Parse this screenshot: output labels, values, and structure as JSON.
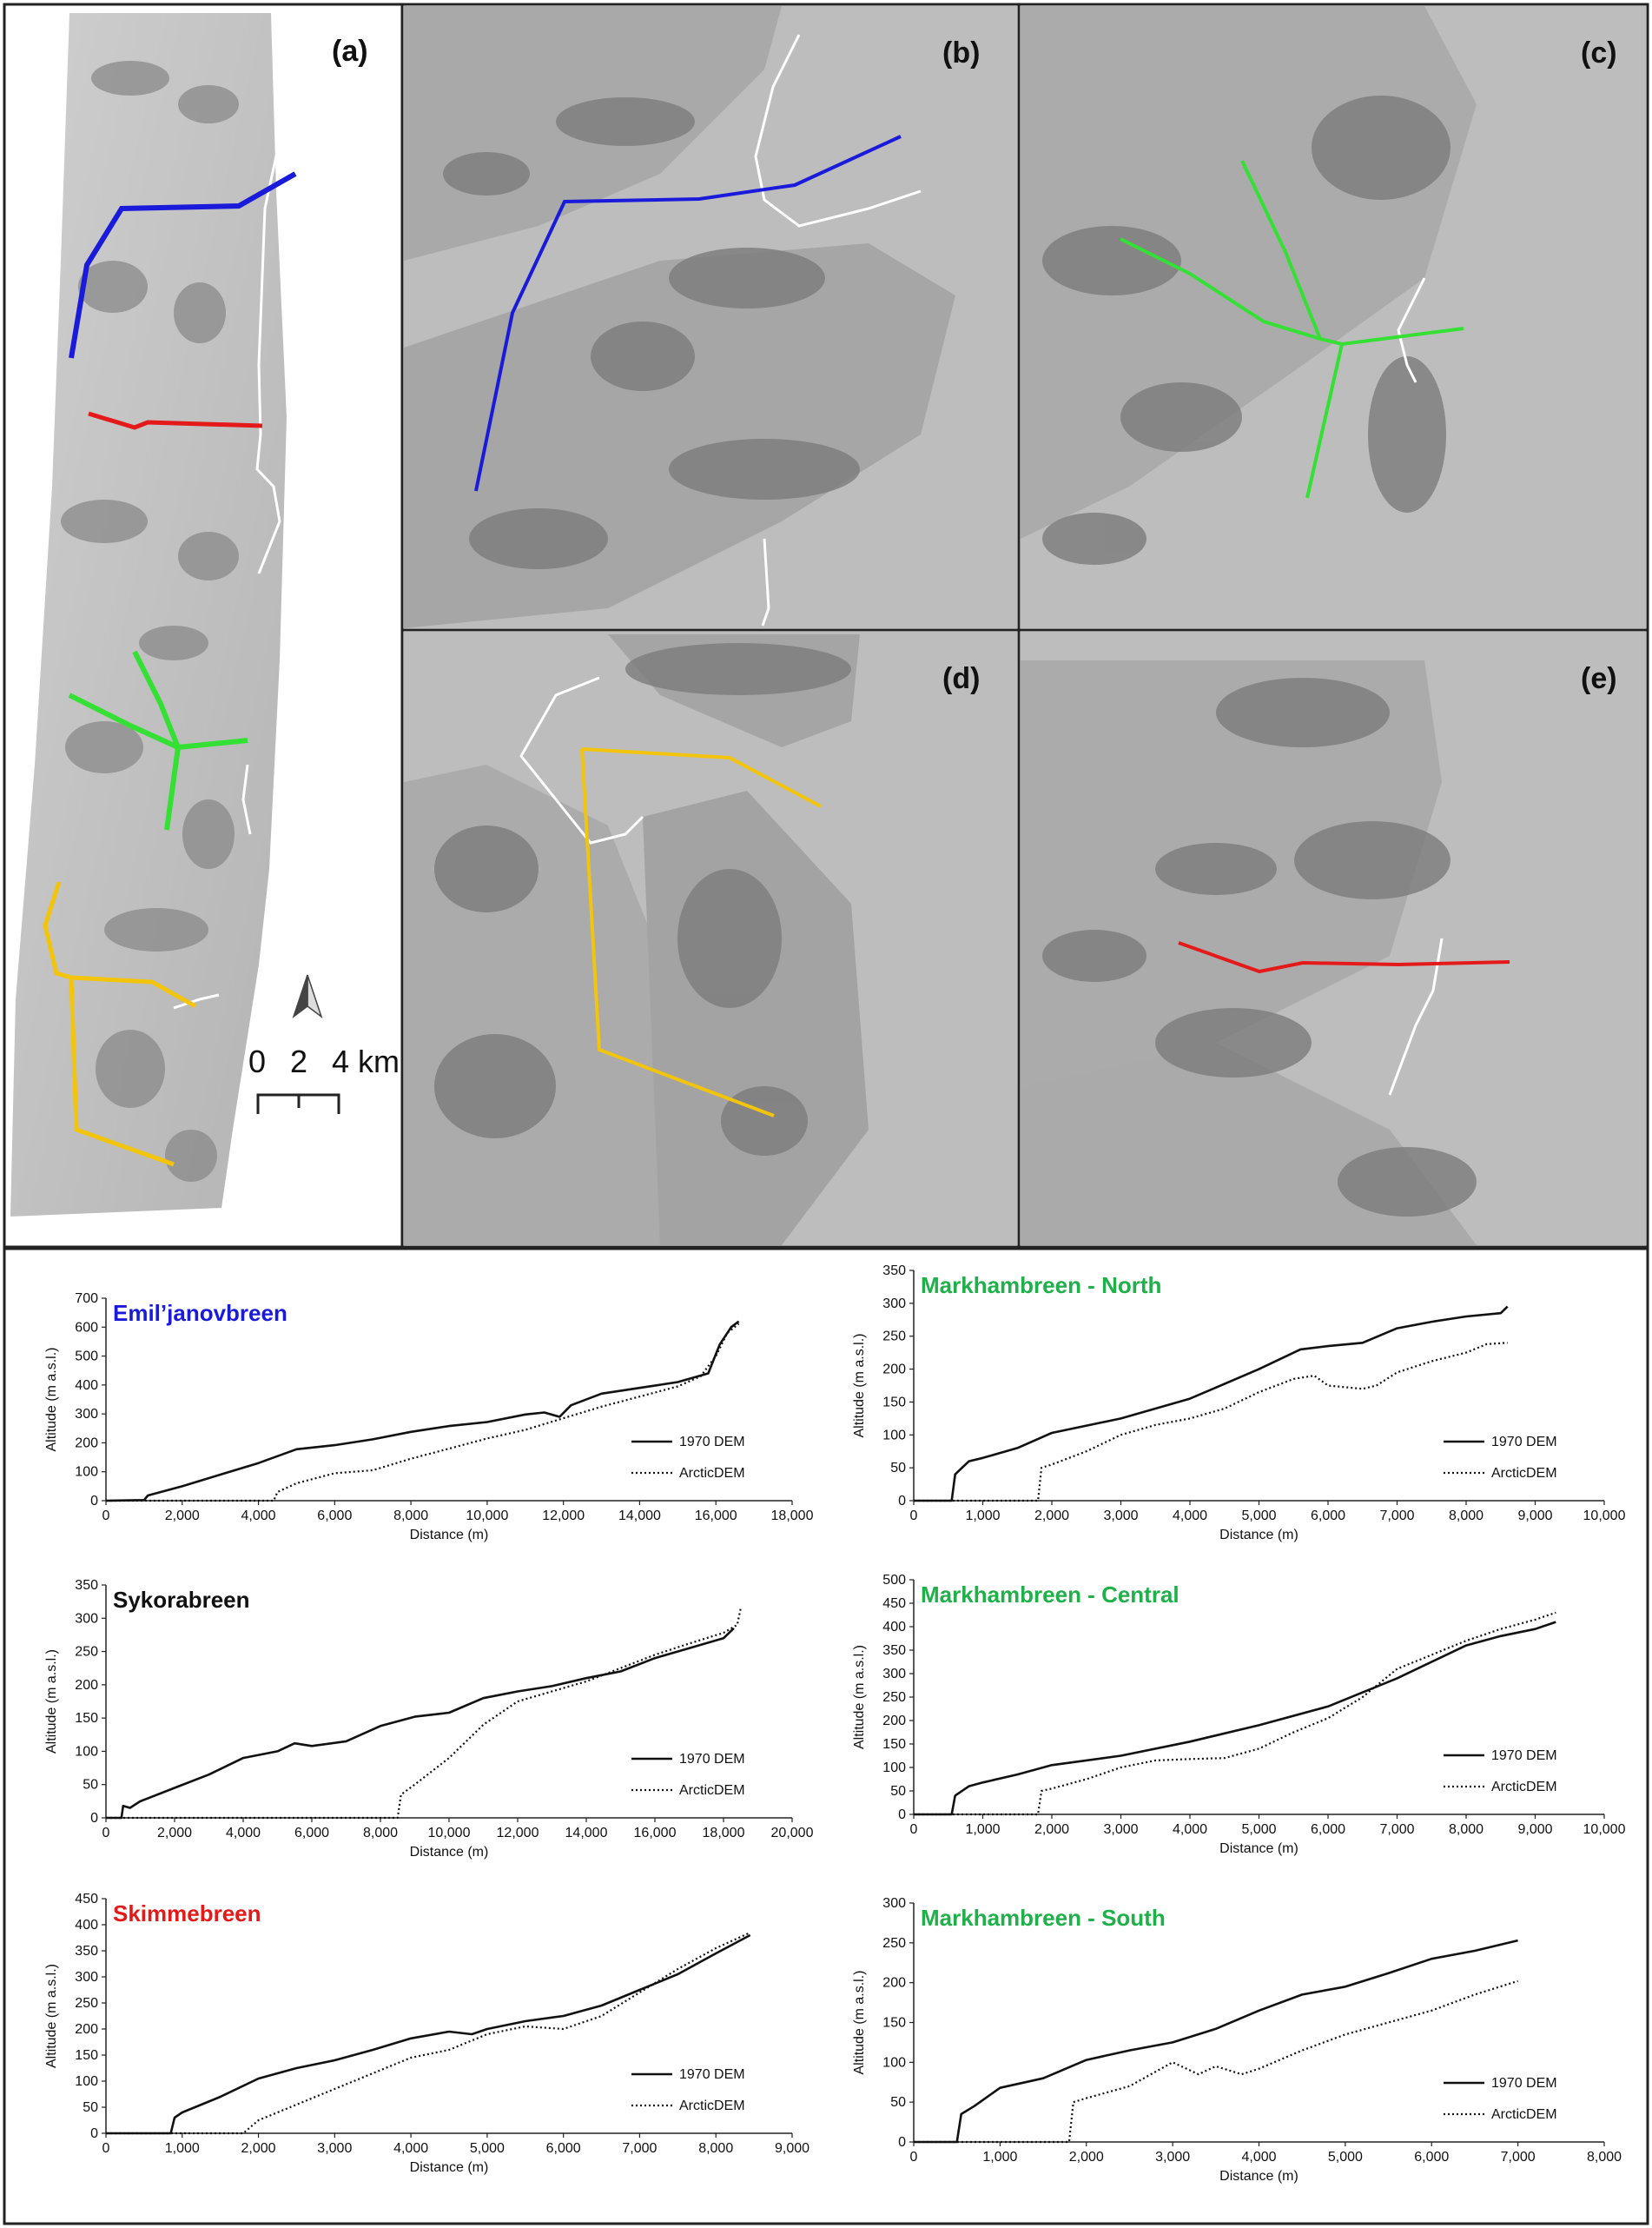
{
  "maps": {
    "labels": [
      "(a)",
      "(b)",
      "(c)",
      "(d)",
      "(e)"
    ],
    "scale_bar": {
      "ticks": [
        "0",
        "2",
        "4 km"
      ]
    },
    "colors": {
      "emil": "#1a1adb",
      "skimme": "#e41a1a",
      "markham": "#34e034",
      "sykora": "#f2c40c",
      "coast": "#ffffff"
    }
  },
  "legend": {
    "series": [
      "1970 DEM",
      "ArcticDEM"
    ]
  },
  "chart_data": [
    {
      "type": "line",
      "title": "Emil’janovbreen",
      "title_color": "#1a1adb",
      "xlabel": "Distance (m)",
      "ylabel": "Altitude (m a.s.l.)",
      "xlim": [
        0,
        18000
      ],
      "ylim": [
        0,
        700
      ],
      "xticks": [
        0,
        2000,
        4000,
        6000,
        8000,
        10000,
        12000,
        14000,
        16000,
        18000
      ],
      "xtick_labels": [
        "0",
        "2,000",
        "4,000",
        "6,000",
        "8,000",
        "10,000",
        "12,000",
        "14,000",
        "16,000",
        "18,000"
      ],
      "yticks": [
        0,
        100,
        200,
        300,
        400,
        500,
        600,
        700
      ],
      "ytick_labels": [
        "0",
        "100",
        "200",
        "300",
        "400",
        "500",
        "600",
        "700"
      ],
      "series": [
        {
          "name": "1970 DEM",
          "style": "solid",
          "x": [
            0,
            1000,
            1100,
            2000,
            3000,
            4000,
            5000,
            6000,
            7000,
            8000,
            9000,
            10000,
            11000,
            11500,
            11900,
            12200,
            13000,
            14000,
            15000,
            15800,
            16100,
            16400,
            16600
          ],
          "y": [
            0,
            2,
            18,
            50,
            90,
            130,
            178,
            192,
            212,
            238,
            258,
            272,
            298,
            305,
            290,
            330,
            370,
            390,
            410,
            440,
            540,
            600,
            620
          ]
        },
        {
          "name": "ArcticDEM",
          "style": "dotted",
          "x": [
            0,
            4400,
            4500,
            5000,
            6000,
            7000,
            8000,
            9000,
            10000,
            11000,
            12000,
            13000,
            14000,
            15000,
            15600,
            16000,
            16300,
            16600
          ],
          "y": [
            0,
            0,
            30,
            60,
            95,
            105,
            145,
            180,
            215,
            245,
            285,
            325,
            360,
            395,
            430,
            500,
            580,
            612
          ]
        }
      ]
    },
    {
      "type": "line",
      "title": "Markhambreen - North",
      "title_color": "#1fb04a",
      "xlabel": "Distance (m)",
      "ylabel": "Altitude (m a.s.l.)",
      "xlim": [
        0,
        10000
      ],
      "ylim": [
        0,
        350
      ],
      "xticks": [
        0,
        1000,
        2000,
        3000,
        4000,
        5000,
        6000,
        7000,
        8000,
        9000,
        10000
      ],
      "xtick_labels": [
        "0",
        "1,000",
        "2,000",
        "3,000",
        "4,000",
        "5,000",
        "6,000",
        "7,000",
        "8,000",
        "9,000",
        "10,000"
      ],
      "yticks": [
        0,
        50,
        100,
        150,
        200,
        250,
        300,
        350
      ],
      "ytick_labels": [
        "0",
        "50",
        "100",
        "150",
        "200",
        "250",
        "300",
        "350"
      ],
      "series": [
        {
          "name": "1970 DEM",
          "style": "solid",
          "x": [
            0,
            550,
            600,
            800,
            1000,
            1500,
            2000,
            3000,
            4000,
            5000,
            5600,
            6000,
            6500,
            7000,
            7500,
            8000,
            8500,
            8600
          ],
          "y": [
            0,
            0,
            40,
            60,
            65,
            80,
            103,
            125,
            155,
            200,
            230,
            235,
            240,
            262,
            272,
            280,
            285,
            295
          ]
        },
        {
          "name": "ArcticDEM",
          "style": "dotted",
          "x": [
            0,
            1800,
            1850,
            2000,
            2500,
            3000,
            3500,
            4000,
            4500,
            5000,
            5500,
            5800,
            6000,
            6500,
            6700,
            7000,
            7500,
            8000,
            8300,
            8600
          ],
          "y": [
            0,
            0,
            50,
            55,
            75,
            100,
            115,
            125,
            140,
            165,
            185,
            190,
            175,
            170,
            175,
            195,
            212,
            225,
            238,
            240
          ]
        }
      ]
    },
    {
      "type": "line",
      "title": "Sykorabreen",
      "title_color": "#111111",
      "xlabel": "Distance (m)",
      "ylabel": "Altitude (m a.s.l.)",
      "xlim": [
        0,
        20000
      ],
      "ylim": [
        0,
        350
      ],
      "xticks": [
        0,
        2000,
        4000,
        6000,
        8000,
        10000,
        12000,
        14000,
        16000,
        18000,
        20000
      ],
      "xtick_labels": [
        "0",
        "2,000",
        "4,000",
        "6,000",
        "8,000",
        "10,000",
        "12,000",
        "14,000",
        "16,000",
        "18,000",
        "20,000"
      ],
      "yticks": [
        0,
        50,
        100,
        150,
        200,
        250,
        300,
        350
      ],
      "ytick_labels": [
        "0",
        "50",
        "100",
        "150",
        "200",
        "250",
        "300",
        "350"
      ],
      "series": [
        {
          "name": "1970 DEM",
          "style": "solid",
          "x": [
            0,
            450,
            500,
            700,
            1000,
            2000,
            3000,
            4000,
            5000,
            5500,
            6000,
            7000,
            8000,
            9000,
            10000,
            11000,
            12000,
            13000,
            14000,
            15000,
            16000,
            17000,
            18000,
            18300
          ],
          "y": [
            0,
            0,
            18,
            15,
            25,
            45,
            65,
            90,
            100,
            112,
            108,
            115,
            138,
            152,
            158,
            180,
            190,
            198,
            210,
            220,
            240,
            255,
            270,
            285
          ]
        },
        {
          "name": "ArcticDEM",
          "style": "dotted",
          "x": [
            0,
            8500,
            8600,
            9000,
            10000,
            11000,
            12000,
            13000,
            14000,
            15000,
            16000,
            17000,
            18000,
            18400,
            18500
          ],
          "y": [
            0,
            0,
            35,
            50,
            90,
            140,
            175,
            190,
            205,
            225,
            245,
            262,
            278,
            290,
            315
          ]
        }
      ]
    },
    {
      "type": "line",
      "title": "Markhambreen - Central",
      "title_color": "#1fb04a",
      "xlabel": "Distance (m)",
      "ylabel": "Altitude (m a.s.l.)",
      "xlim": [
        0,
        10000
      ],
      "ylim": [
        0,
        500
      ],
      "xticks": [
        0,
        1000,
        2000,
        3000,
        4000,
        5000,
        6000,
        7000,
        8000,
        9000,
        10000
      ],
      "xtick_labels": [
        "0",
        "1,000",
        "2,000",
        "3,000",
        "4,000",
        "5,000",
        "6,000",
        "7,000",
        "8,000",
        "9,000",
        "10,000"
      ],
      "yticks": [
        0,
        50,
        100,
        150,
        200,
        250,
        300,
        350,
        400,
        450,
        500
      ],
      "ytick_labels": [
        "0",
        "50",
        "100",
        "150",
        "200",
        "250",
        "300",
        "350",
        "400",
        "450",
        "500"
      ],
      "series": [
        {
          "name": "1970 DEM",
          "style": "solid",
          "x": [
            0,
            550,
            600,
            800,
            1000,
            1500,
            2000,
            3000,
            4000,
            5000,
            6000,
            7000,
            8000,
            8500,
            9000,
            9300
          ],
          "y": [
            0,
            0,
            40,
            60,
            68,
            85,
            105,
            125,
            155,
            190,
            230,
            290,
            360,
            380,
            395,
            410
          ]
        },
        {
          "name": "ArcticDEM",
          "style": "dotted",
          "x": [
            0,
            1800,
            1850,
            2000,
            2500,
            3000,
            3500,
            4000,
            4500,
            5000,
            5500,
            6000,
            6500,
            7000,
            7500,
            8000,
            8500,
            9000,
            9300
          ],
          "y": [
            0,
            0,
            50,
            55,
            75,
            100,
            115,
            118,
            120,
            140,
            175,
            205,
            250,
            310,
            340,
            370,
            395,
            415,
            430
          ]
        }
      ]
    },
    {
      "type": "line",
      "title": "Skimmebreen",
      "title_color": "#e41a1a",
      "xlabel": "Distance (m)",
      "ylabel": "Altitude (m a.s.l.)",
      "xlim": [
        0,
        9000
      ],
      "ylim": [
        0,
        450
      ],
      "xticks": [
        0,
        1000,
        2000,
        3000,
        4000,
        5000,
        6000,
        7000,
        8000,
        9000
      ],
      "xtick_labels": [
        "0",
        "1,000",
        "2,000",
        "3,000",
        "4,000",
        "5,000",
        "6,000",
        "7,000",
        "8,000",
        "9,000"
      ],
      "yticks": [
        0,
        50,
        100,
        150,
        200,
        250,
        300,
        350,
        400,
        450
      ],
      "ytick_labels": [
        "0",
        "50",
        "100",
        "150",
        "200",
        "250",
        "300",
        "350",
        "400",
        "450"
      ],
      "series": [
        {
          "name": "1970 DEM",
          "style": "solid",
          "x": [
            0,
            850,
            900,
            1000,
            1500,
            2000,
            2500,
            3000,
            3500,
            4000,
            4500,
            4800,
            5000,
            5500,
            6000,
            6500,
            7000,
            7500,
            8000,
            8450
          ],
          "y": [
            0,
            0,
            30,
            40,
            70,
            105,
            125,
            140,
            160,
            182,
            195,
            190,
            200,
            215,
            225,
            245,
            275,
            305,
            345,
            380
          ]
        },
        {
          "name": "ArcticDEM",
          "style": "dotted",
          "x": [
            0,
            1800,
            2000,
            2500,
            3000,
            3500,
            4000,
            4500,
            5000,
            5500,
            6000,
            6500,
            7000,
            7500,
            8000,
            8450
          ],
          "y": [
            0,
            0,
            25,
            55,
            85,
            115,
            145,
            160,
            190,
            205,
            200,
            225,
            270,
            315,
            355,
            385
          ]
        }
      ]
    },
    {
      "type": "line",
      "title": "Markhambreen - South",
      "title_color": "#1fb04a",
      "xlabel": "Distance (m)",
      "ylabel": "Altitude (m a.s.l.)",
      "xlim": [
        0,
        8000
      ],
      "ylim": [
        0,
        300
      ],
      "xticks": [
        0,
        1000,
        2000,
        3000,
        4000,
        5000,
        6000,
        7000,
        8000
      ],
      "xtick_labels": [
        "0",
        "1,000",
        "2,000",
        "3,000",
        "4,000",
        "5,000",
        "6,000",
        "7,000",
        "8,000"
      ],
      "yticks": [
        0,
        50,
        100,
        150,
        200,
        250,
        300
      ],
      "ytick_labels": [
        "0",
        "50",
        "100",
        "150",
        "200",
        "250",
        "300"
      ],
      "series": [
        {
          "name": "1970 DEM",
          "style": "solid",
          "x": [
            0,
            500,
            550,
            700,
            1000,
            1500,
            2000,
            2500,
            3000,
            3500,
            4000,
            4500,
            5000,
            5500,
            6000,
            6500,
            7000
          ],
          "y": [
            0,
            0,
            35,
            45,
            68,
            80,
            103,
            115,
            125,
            142,
            165,
            185,
            195,
            212,
            230,
            240,
            253
          ]
        },
        {
          "name": "ArcticDEM",
          "style": "dotted",
          "x": [
            0,
            1800,
            1850,
            2000,
            2500,
            3000,
            3300,
            3500,
            3800,
            4000,
            4500,
            5000,
            5500,
            6000,
            6500,
            7000
          ],
          "y": [
            0,
            0,
            50,
            55,
            70,
            100,
            85,
            95,
            85,
            92,
            115,
            135,
            150,
            165,
            185,
            202
          ]
        }
      ]
    }
  ]
}
